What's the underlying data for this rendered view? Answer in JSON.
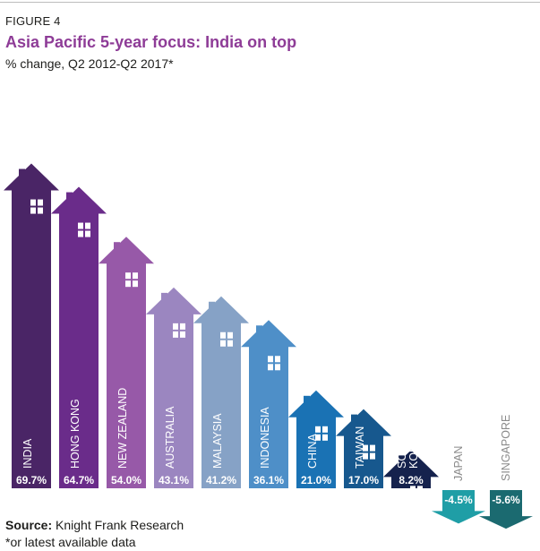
{
  "header": {
    "figure_label": "FIGURE 4",
    "title": "Asia Pacific 5-year focus: India on top",
    "subtitle": "% change, Q2 2012-Q2 2017*"
  },
  "footer": {
    "source_prefix": "Source:",
    "source_text": " Knight Frank Research",
    "note": "*or latest available data"
  },
  "chart_data": {
    "type": "bar",
    "title": "Asia Pacific 5-year focus: India on top",
    "subtitle": "% change, Q2 2012-Q2 2017*",
    "categories": [
      "INDIA",
      "HONG KONG",
      "NEW ZEALAND",
      "AUSTRALIA",
      "MALAYSIA",
      "INDONESIA",
      "CHINA",
      "TAIWAN",
      "SOUTH KOREA",
      "JAPAN",
      "SINGAPORE"
    ],
    "category_lines": [
      [
        "INDIA"
      ],
      [
        "HONG KONG"
      ],
      [
        "NEW ZEALAND"
      ],
      [
        "AUSTRALIA"
      ],
      [
        "MALAYSIA"
      ],
      [
        "INDONESIA"
      ],
      [
        "CHINA"
      ],
      [
        "TAIWAN"
      ],
      [
        "SOUTH",
        "KOREA"
      ],
      [
        "JAPAN"
      ],
      [
        "SINGAPORE"
      ]
    ],
    "values": [
      69.7,
      64.7,
      54.0,
      43.1,
      41.2,
      36.1,
      21.0,
      17.0,
      8.2,
      -4.5,
      -5.6
    ],
    "value_labels": [
      "69.7%",
      "64.7%",
      "54.0%",
      "43.1%",
      "41.2%",
      "36.1%",
      "21.0%",
      "17.0%",
      "8.2%",
      "-4.5%",
      "-5.6%"
    ],
    "colors": [
      "#4a2566",
      "#6a2c8a",
      "#9759a8",
      "#9b86c0",
      "#86a2c6",
      "#4e8fc8",
      "#1a72b4",
      "#17588e",
      "#15224d",
      "#1f9ea6",
      "#1b6a70"
    ],
    "ylim": [
      -10,
      75
    ],
    "grid": false,
    "legend": "none"
  }
}
